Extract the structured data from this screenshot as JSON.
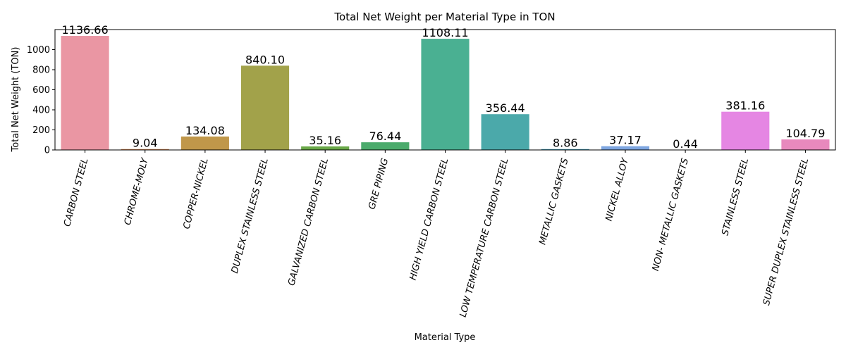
{
  "chart_data": {
    "type": "bar",
    "title": "Total Net Weight per Material Type in TON",
    "xlabel": "Material Type",
    "ylabel": "Total Net Weight (TON)",
    "ylim": [
      0,
      1200
    ],
    "yticks": [
      0,
      200,
      400,
      600,
      800,
      1000
    ],
    "grid": false,
    "categories": [
      "CARBON STEEL",
      "CHROME-MOLY",
      "COPPER-NICKEL",
      "DUPLEX STAINLESS STEEL",
      "GALVANIZED CARBON STEEL",
      "GRE PIPING",
      "HIGH YIELD CARBON STEEL",
      "LOW TEMPERATURE CARBON STEEL",
      "METALLIC GASKETS",
      "NICKEL ALLOY",
      "NON- METALLIC GASKETS",
      "STAINLESS STEEL",
      "SUPER DUPLEX STAINLESS STEEL"
    ],
    "values": [
      1136.66,
      9.04,
      134.08,
      840.1,
      35.16,
      76.44,
      1108.11,
      356.44,
      8.86,
      37.17,
      0.44,
      381.16,
      104.79
    ],
    "data_labels": [
      "1136.66",
      "9.04",
      "134.08",
      "840.10",
      "35.16",
      "76.44",
      "1108.11",
      "356.44",
      "8.86",
      "37.17",
      "0.44",
      "381.16",
      "104.79"
    ],
    "colors": [
      "#ea96a3",
      "#dc8d5b",
      "#c0974a",
      "#a2a24a",
      "#6aa848",
      "#4bab6c",
      "#4ab092",
      "#4ba9aa",
      "#4aa4c1",
      "#7ea6e0",
      "#b59ae8",
      "#e586e3",
      "#e889bd"
    ]
  }
}
